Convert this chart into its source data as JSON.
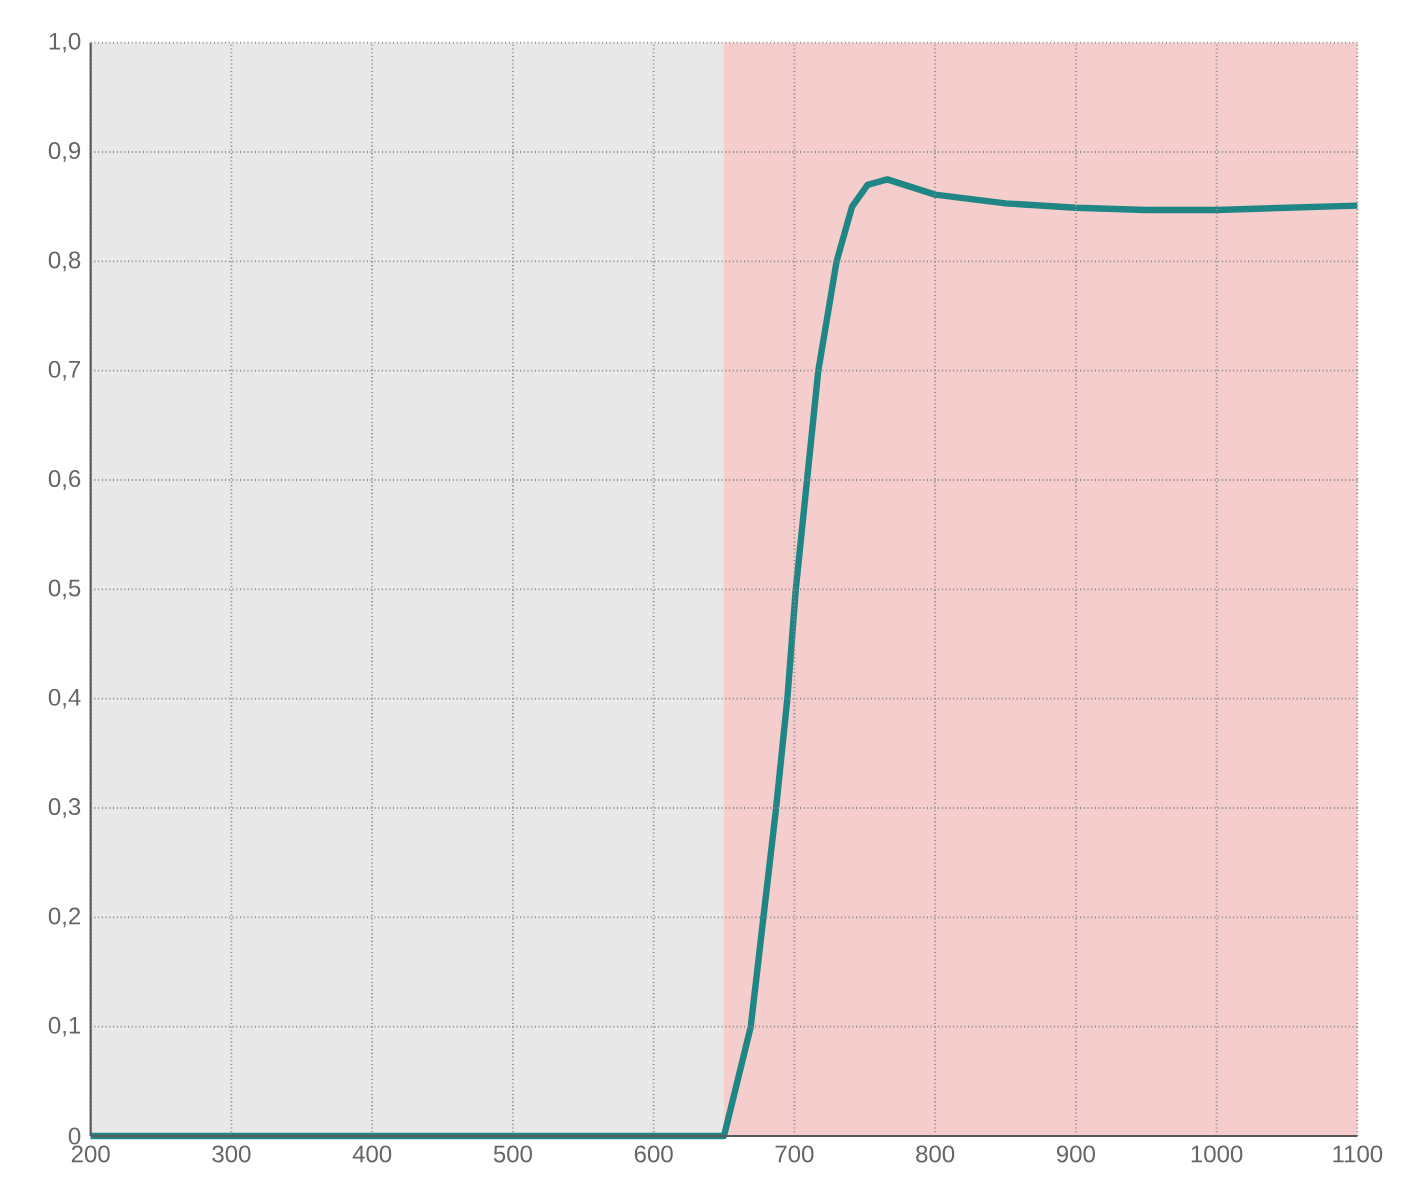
{
  "chart_data": {
    "type": "line",
    "xlim": [
      200,
      1100
    ],
    "ylim": [
      0,
      1.0
    ],
    "xticks": [
      200,
      300,
      400,
      500,
      600,
      700,
      800,
      900,
      1000,
      1100
    ],
    "yticks": [
      0,
      {
        "value": 0.1,
        "label": "0,1"
      },
      {
        "value": 0.2,
        "label": "0,2"
      },
      {
        "value": 0.3,
        "label": "0,3"
      },
      {
        "value": 0.4,
        "label": "0,4"
      },
      {
        "value": 0.5,
        "label": "0,5"
      },
      {
        "value": 0.6,
        "label": "0,6"
      },
      {
        "value": 0.7,
        "label": "0,7"
      },
      {
        "value": 0.8,
        "label": "0,8"
      },
      {
        "value": 0.9,
        "label": "0,9"
      },
      {
        "value": 1.0,
        "label": "1,0"
      }
    ],
    "grid": true,
    "marker": "none",
    "line_style": "solid",
    "bands": [
      {
        "axis": "x",
        "from": 200,
        "to": 650,
        "color": "#e8e8e8"
      },
      {
        "axis": "x",
        "from": 650,
        "to": 1100,
        "color": "#f5cdcd"
      }
    ],
    "series": [
      {
        "color": "#1f8585",
        "x": [
          200,
          300,
          400,
          500,
          600,
          650,
          669,
          678,
          687,
          695,
          701,
          709,
          717,
          730,
          741,
          752,
          766,
          800,
          850,
          900,
          950,
          1000,
          1050,
          1100
        ],
        "values": [
          0,
          0,
          0,
          0,
          0,
          0,
          0.1,
          0.2,
          0.3,
          0.4,
          0.5,
          0.6,
          0.7,
          0.8,
          0.85,
          0.87,
          0.875,
          0.861,
          0.853,
          0.849,
          0.847,
          0.847,
          0.849,
          0.851
        ]
      }
    ]
  }
}
